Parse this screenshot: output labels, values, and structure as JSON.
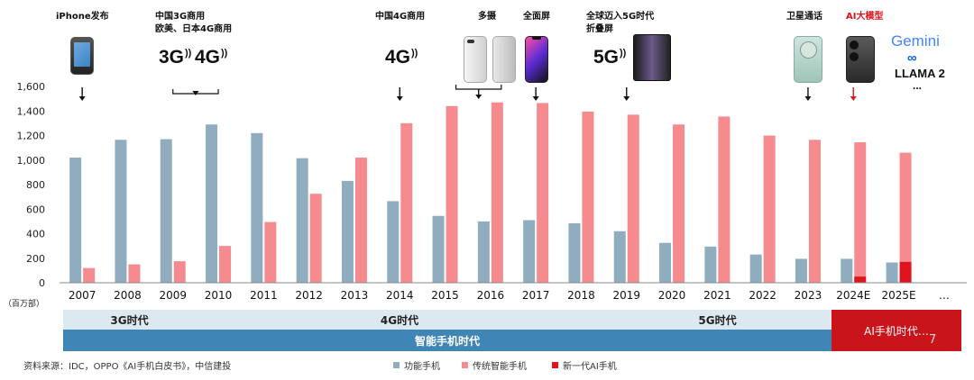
{
  "chart_data": {
    "type": "bar",
    "categories": [
      "2007",
      "2008",
      "2009",
      "2010",
      "2011",
      "2012",
      "2013",
      "2014",
      "2015",
      "2016",
      "2017",
      "2018",
      "2019",
      "2020",
      "2021",
      "2022",
      "2023",
      "2024E",
      "2025E",
      "…"
    ],
    "series": [
      {
        "name": "功能手机",
        "color": "#8fadbf",
        "values": [
          1020,
          1165,
          1170,
          1290,
          1220,
          1015,
          830,
          665,
          545,
          500,
          510,
          485,
          420,
          325,
          295,
          230,
          195,
          195,
          165,
          null
        ]
      },
      {
        "name": "传统智能手机",
        "color": "#f58b8e",
        "values": [
          120,
          150,
          175,
          300,
          495,
          725,
          1020,
          1300,
          1440,
          1470,
          1465,
          1395,
          1370,
          1290,
          1355,
          1200,
          1165,
          1145,
          1060,
          null
        ]
      },
      {
        "name": "新一代AI手机",
        "color": "#e0141c",
        "values": [
          null,
          null,
          null,
          null,
          null,
          null,
          null,
          null,
          null,
          null,
          null,
          null,
          null,
          null,
          null,
          null,
          null,
          50,
          170,
          null
        ]
      }
    ],
    "ylim": [
      0,
      1600
    ],
    "yticks": [
      "0",
      "200",
      "400",
      "600",
      "800",
      "1,000",
      "1,200",
      "1,400",
      "1,600"
    ],
    "unit_label": "（百万部）",
    "grid": false
  },
  "annotations": {
    "iphone": "iPhone发布",
    "cn3g_line1": "中国3G商用",
    "cn3g_line2": "欧美、日本4G商用",
    "cn4g": "中国4G商用",
    "multicam": "多摄",
    "fullscreen": "全面屏",
    "global5g_line1": "全球迈入5G时代",
    "global5g_line2": "折叠屏",
    "satellite": "卫星通话",
    "ai_model": "AI大模型",
    "badge_3g": "3G",
    "badge_4g_a": "4G",
    "badge_4g_b": "4G",
    "badge_5g": "5G",
    "gemini": "Gemini",
    "llama": "LLAMA 2",
    "ellipsis": "..."
  },
  "eras": {
    "e3g": "3G时代",
    "e4g": "4G时代",
    "e5g": "5G时代",
    "eai": "AI手机时代…",
    "smart": "智能手机时代",
    "page_number": "7"
  },
  "footer": {
    "source": "资料来源：IDC，OPPO《AI手机白皮书》，中信建投",
    "legend_feature": "功能手机",
    "legend_smart": "传统智能手机",
    "legend_ai": "新一代AI手机"
  }
}
